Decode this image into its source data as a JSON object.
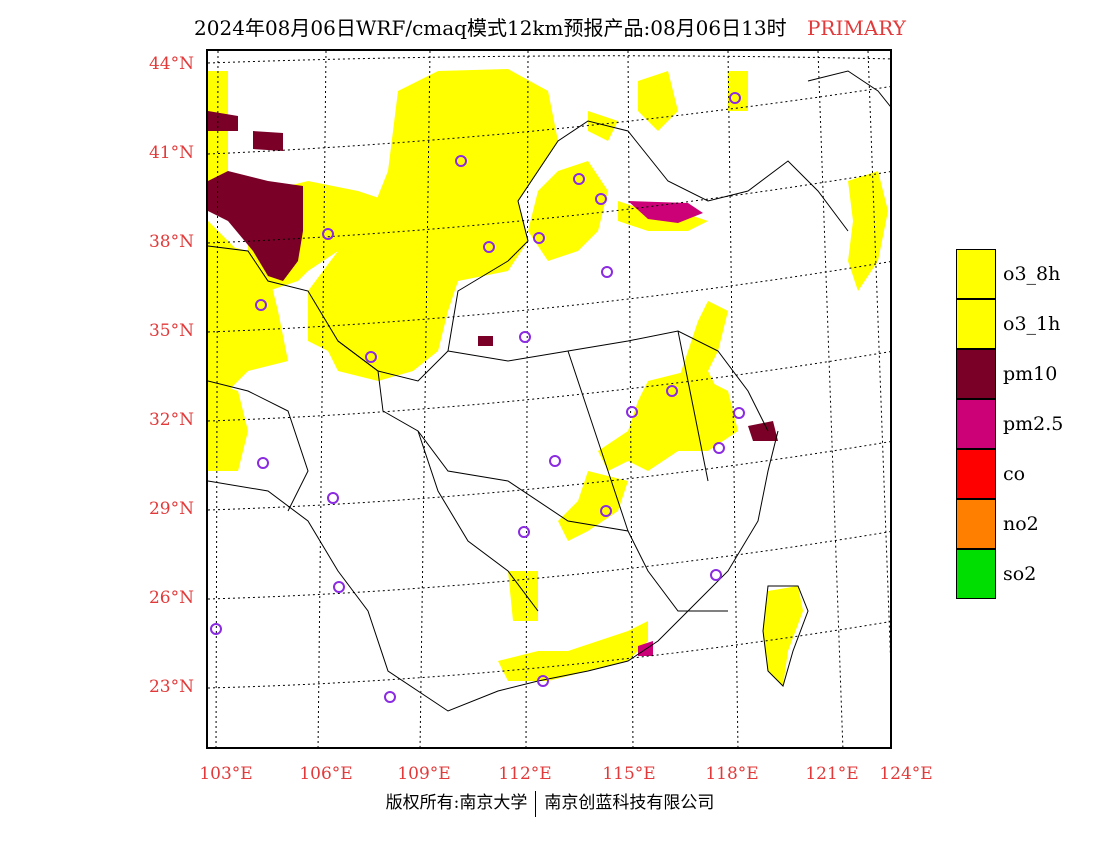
{
  "header": {
    "title": "2024年08月06日WRF/cmaq模式12km预报产品:08月06日13时",
    "status": "PRIMARY"
  },
  "map": {
    "lat_labels": [
      "44°N",
      "41°N",
      "38°N",
      "35°N",
      "32°N",
      "29°N",
      "26°N",
      "23°N"
    ],
    "lon_labels": [
      "103°E",
      "106°E",
      "109°E",
      "112°E",
      "115°E",
      "118°E",
      "121°E",
      "124°E"
    ]
  },
  "legend": {
    "items": [
      {
        "label": "o3_8h",
        "color": "#ffff00"
      },
      {
        "label": "o3_1h",
        "color": "#ffff00"
      },
      {
        "label": "pm10",
        "color": "#7a0028"
      },
      {
        "label": "pm2.5",
        "color": "#cc0077"
      },
      {
        "label": "co",
        "color": "#ff0000"
      },
      {
        "label": "no2",
        "color": "#ff8000"
      },
      {
        "label": "so2",
        "color": "#00dd00"
      }
    ]
  },
  "footer": {
    "credit_left": "版权所有:南京大学",
    "credit_right": "南京创蓝科技有限公司"
  }
}
